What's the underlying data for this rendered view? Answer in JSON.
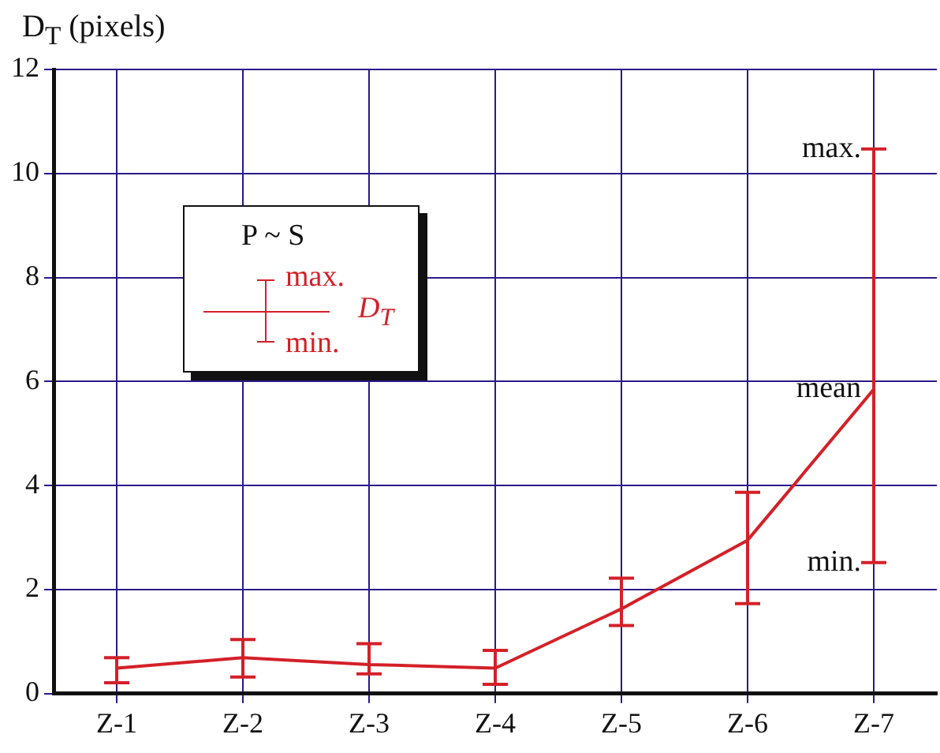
{
  "chart_data": {
    "type": "line",
    "ylabel": "D$_{T}$ (pixels)",
    "legend_title": "P ~ S",
    "legend": "top left",
    "grid": true,
    "marker": "none",
    "line_style": "solid",
    "categories": [
      "Z-1",
      "Z-2",
      "Z-3",
      "Z-4",
      "Z-5",
      "Z-6",
      "Z-7"
    ],
    "ylim": [
      0,
      12
    ],
    "yticks": [
      0,
      2,
      4,
      6,
      8,
      10,
      12
    ],
    "series": [
      {
        "name": "D$_{T}$",
        "color": "#d42028",
        "values": [
          0.49,
          0.69,
          0.56,
          0.49,
          1.63,
          2.95,
          5.85
        ],
        "errors": [
          [
            0.21,
            0.69
          ],
          [
            0.32,
            1.04
          ],
          [
            0.38,
            0.96
          ],
          [
            0.18,
            0.83
          ],
          [
            1.31,
            2.22
          ],
          [
            1.73,
            3.87
          ],
          [
            2.52,
            10.47
          ]
        ]
      }
    ],
    "annotations": [
      "max.",
      "min.",
      {
        "text": "max.",
        "x": "Z-7",
        "y": 10.47
      },
      {
        "text": "mean",
        "x": "Z-7",
        "y": 5.85
      },
      {
        "text": "min.",
        "x": "Z-7",
        "y": 2.52
      }
    ]
  }
}
